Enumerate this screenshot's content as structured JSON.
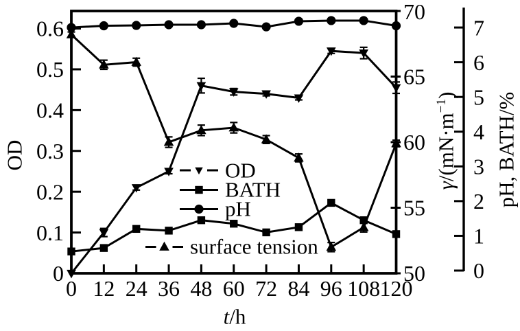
{
  "figure": {
    "background_color": "#ffffff",
    "ink_color": "#000000"
  },
  "chart_data": {
    "type": "line",
    "x": [
      0,
      12,
      24,
      36,
      48,
      60,
      72,
      84,
      96,
      108,
      120
    ],
    "xlabel": "t/h",
    "xlabel_italic": "t",
    "xlabel_rest": "/h",
    "x_ticks": [
      "0",
      "12",
      "24",
      "36",
      "48",
      "60",
      "72",
      "84",
      "96",
      "108",
      "120"
    ],
    "axes": {
      "left": {
        "label": "OD",
        "ticks": [
          "0",
          "0.1",
          "0.2",
          "0.3",
          "0.4",
          "0.5",
          "0.6"
        ],
        "tick_values": [
          0,
          0.1,
          0.2,
          0.3,
          0.4,
          0.5,
          0.6
        ],
        "range": [
          0,
          0.643
        ]
      },
      "right_gamma": {
        "label": "γ/(mN·m⁻¹)",
        "label_sym": "γ",
        "label_base": "/(mN·m",
        "label_sup": "−1",
        "label_close": ")",
        "ticks": [
          "50",
          "55",
          "60",
          "65",
          "70"
        ],
        "tick_values": [
          50,
          55,
          60,
          65,
          70
        ],
        "range": [
          50,
          70
        ]
      },
      "right_ph_bath": {
        "label": "pH, BATH/%",
        "ticks": [
          "0",
          "1",
          "2",
          "3",
          "4",
          "5",
          "6",
          "7"
        ],
        "tick_values": [
          0,
          1,
          2,
          3,
          4,
          5,
          6,
          7
        ],
        "range": [
          0,
          7.55
        ]
      }
    },
    "series": [
      {
        "name": "OD",
        "axis": "left",
        "marker": "triangle-down",
        "line": "solid",
        "values": [
          0,
          0.1,
          0.21,
          0.25,
          0.46,
          0.445,
          0.44,
          0.43,
          0.545,
          0.54,
          0.455
        ],
        "errors": [
          0,
          0.01,
          0.006,
          0.006,
          0.018,
          0.008,
          0.005,
          0.005,
          0.006,
          0.014,
          0.014
        ]
      },
      {
        "name": "BATH",
        "axis": "right_ph_bath",
        "marker": "square",
        "line": "solid",
        "values": [
          0.55,
          0.65,
          1.2,
          1.15,
          1.45,
          1.35,
          1.1,
          1.25,
          1.95,
          1.45,
          1.05
        ],
        "errors": [
          0,
          0,
          0,
          0,
          0,
          0,
          0,
          0,
          0,
          0,
          0
        ]
      },
      {
        "name": "pH",
        "axis": "right_ph_bath",
        "marker": "circle",
        "line": "solid",
        "values": [
          7.0,
          7.05,
          7.06,
          7.08,
          7.08,
          7.12,
          7.02,
          7.18,
          7.2,
          7.2,
          7.05
        ],
        "errors": [
          0,
          0,
          0,
          0,
          0,
          0,
          0,
          0,
          0,
          0,
          0
        ]
      },
      {
        "name": "surface tension",
        "axis": "right_gamma",
        "marker": "triangle-up",
        "line": "solid",
        "values": [
          68.2,
          65.9,
          66.1,
          60.0,
          60.9,
          61.1,
          60.2,
          58.8,
          52.0,
          53.5,
          59.9
        ],
        "errors": [
          0.2,
          0.35,
          0.3,
          0.4,
          0.4,
          0.4,
          0.3,
          0.3,
          0.35,
          0.35,
          0.25
        ]
      }
    ],
    "legend": {
      "position": "inside-center-left",
      "entries": [
        "OD",
        "BATH",
        "pH",
        "surface tension"
      ]
    },
    "grid": "off"
  }
}
